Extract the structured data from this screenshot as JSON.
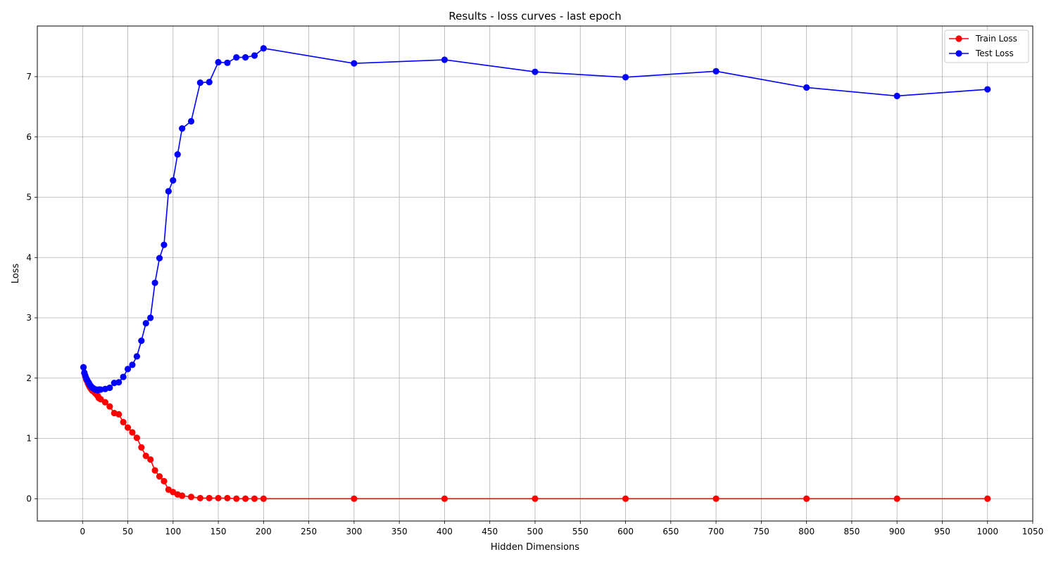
{
  "chart_data": {
    "type": "line",
    "title": "Results - loss curves - last epoch",
    "xlabel": "Hidden Dimensions",
    "ylabel": "Loss",
    "xlim": [
      -50,
      1050
    ],
    "ylim": [
      -0.37,
      7.84
    ],
    "xticks": [
      0,
      50,
      100,
      150,
      200,
      250,
      300,
      350,
      400,
      450,
      500,
      550,
      600,
      650,
      700,
      750,
      800,
      850,
      900,
      950,
      1000,
      1050
    ],
    "yticks": [
      0,
      1,
      2,
      3,
      4,
      5,
      6,
      7
    ],
    "grid": true,
    "legend_position": "top-right",
    "x": [
      1,
      2,
      3,
      4,
      5,
      6,
      7,
      8,
      9,
      10,
      11,
      12,
      13,
      14,
      15,
      16,
      17,
      18,
      19,
      20,
      25,
      30,
      35,
      40,
      45,
      50,
      55,
      60,
      65,
      70,
      75,
      80,
      85,
      90,
      95,
      100,
      105,
      110,
      120,
      130,
      140,
      150,
      160,
      170,
      180,
      190,
      200,
      300,
      400,
      500,
      600,
      700,
      800,
      900,
      1000
    ],
    "series": [
      {
        "name": "Train Loss",
        "color": "#ff0000",
        "values": [
          2.18,
          2.08,
          2.03,
          1.98,
          1.95,
          1.91,
          1.88,
          1.85,
          1.83,
          1.81,
          1.79,
          1.78,
          1.77,
          1.75,
          1.74,
          1.72,
          1.7,
          1.67,
          1.66,
          1.65,
          1.6,
          1.53,
          1.42,
          1.4,
          1.27,
          1.18,
          1.1,
          1.01,
          0.85,
          0.71,
          0.65,
          0.47,
          0.37,
          0.29,
          0.15,
          0.11,
          0.07,
          0.05,
          0.03,
          0.01,
          0.01,
          0.01,
          0.01,
          0.0,
          0.0,
          0.0,
          0.0,
          0.0,
          0.0,
          0.0,
          0.0,
          0.0,
          0.0,
          0.0,
          0.0
        ]
      },
      {
        "name": "Test Loss",
        "color": "#0000ff",
        "values": [
          2.18,
          2.09,
          2.04,
          2.0,
          1.97,
          1.94,
          1.92,
          1.89,
          1.87,
          1.85,
          1.84,
          1.83,
          1.82,
          1.81,
          1.81,
          1.8,
          1.8,
          1.81,
          1.81,
          1.81,
          1.82,
          1.84,
          1.92,
          1.93,
          2.02,
          2.15,
          2.22,
          2.36,
          2.62,
          2.91,
          3.0,
          3.58,
          3.99,
          4.21,
          5.1,
          5.28,
          5.71,
          6.14,
          6.26,
          6.9,
          6.91,
          7.24,
          7.23,
          7.32,
          7.32,
          7.35,
          7.47,
          7.22,
          7.28,
          7.08,
          6.99,
          7.09,
          6.82,
          6.68,
          6.79
        ]
      }
    ]
  }
}
